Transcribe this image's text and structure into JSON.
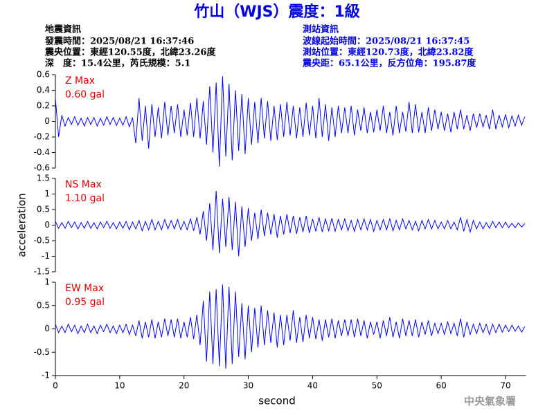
{
  "title": "竹山（WJS）震度：1級",
  "earthquake_info": [
    "地震資訊",
    "發震時間：2025/08/21 16:37:46",
    "震央位置：東經120.55度，北緯23.26度",
    "深　度：15.4公里，芮氏規模：5.1"
  ],
  "station_info": [
    "測站資訊",
    "波線起始時間：2025/08/21 16:37:45",
    "測站位置：東經120.73度，北緯23.82度",
    "震央距：65.1公里，反方位角：195.87度"
  ],
  "watermark": "中央氣象署",
  "chart_data": [
    {
      "type": "line",
      "color": "#0000ff",
      "annotations": [
        "Z Max",
        "0.60 gal"
      ],
      "xlim": [
        0,
        73.2
      ],
      "ylim": [
        -0.6,
        0.6
      ],
      "yticks": [
        0.6,
        0.4,
        0.2,
        0,
        -0.2,
        -0.4,
        -0.6
      ],
      "x": [
        0,
        0.5,
        1,
        1.5,
        2,
        2.5,
        3,
        3.5,
        4,
        4.5,
        5,
        5.5,
        6,
        6.5,
        7,
        7.5,
        8,
        8.5,
        9,
        9.5,
        10,
        10.5,
        11,
        11.5,
        12,
        12.5,
        13,
        13.5,
        14,
        14.5,
        15,
        15.5,
        16,
        16.5,
        17,
        17.5,
        18,
        18.5,
        19,
        19.5,
        20,
        20.5,
        21,
        21.5,
        22,
        22.5,
        23,
        23.5,
        24,
        24.5,
        25,
        25.5,
        26,
        26.5,
        27,
        27.5,
        28,
        28.5,
        29,
        29.5,
        30,
        30.5,
        31,
        31.5,
        32,
        32.5,
        33,
        33.5,
        34,
        34.5,
        35,
        35.5,
        36,
        36.5,
        37,
        37.5,
        38,
        38.5,
        39,
        39.5,
        40,
        40.5,
        41,
        41.5,
        42,
        42.5,
        43,
        43.5,
        44,
        44.5,
        45,
        45.5,
        46,
        46.5,
        47,
        47.5,
        48,
        48.5,
        49,
        49.5,
        50,
        50.5,
        51,
        51.5,
        52,
        52.5,
        53,
        53.5,
        54,
        54.5,
        55,
        55.5,
        56,
        56.5,
        57,
        57.5,
        58,
        58.5,
        59,
        59.5,
        60,
        60.5,
        61,
        61.5,
        62,
        62.5,
        63,
        63.5,
        64,
        64.5,
        65,
        65.5,
        66,
        66.5,
        67,
        67.5,
        68,
        68.5,
        69,
        69.5,
        70,
        70.5,
        71,
        71.5,
        72,
        72.5,
        73
      ],
      "values": [
        0.3,
        -0.2,
        0.08,
        -0.06,
        0.05,
        -0.04,
        0.06,
        -0.05,
        0.04,
        -0.06,
        0.05,
        -0.04,
        0.05,
        -0.06,
        0.04,
        -0.05,
        0.06,
        -0.04,
        0.05,
        -0.05,
        0.04,
        -0.05,
        0.06,
        -0.07,
        0.05,
        -0.28,
        0.3,
        -0.25,
        0.2,
        -0.35,
        0.22,
        -0.2,
        0.18,
        -0.22,
        0.25,
        -0.18,
        0.2,
        -0.15,
        0.22,
        -0.2,
        0.15,
        -0.18,
        0.24,
        -0.2,
        0.3,
        -0.22,
        0.26,
        -0.3,
        0.45,
        -0.4,
        0.5,
        -0.58,
        0.58,
        -0.45,
        0.48,
        -0.5,
        0.4,
        -0.38,
        0.35,
        -0.42,
        0.3,
        -0.3,
        0.25,
        -0.28,
        0.3,
        -0.22,
        0.26,
        -0.25,
        0.2,
        -0.24,
        0.22,
        -0.2,
        0.25,
        -0.18,
        0.2,
        -0.22,
        0.18,
        -0.2,
        0.24,
        -0.18,
        0.2,
        -0.22,
        0.3,
        -0.2,
        0.22,
        -0.25,
        0.18,
        -0.2,
        0.2,
        -0.15,
        0.18,
        -0.15,
        0.2,
        -0.18,
        0.15,
        -0.12,
        0.18,
        -0.15,
        0.12,
        -0.14,
        0.15,
        -0.12,
        0.2,
        -0.15,
        0.12,
        -0.18,
        0.2,
        -0.15,
        0.12,
        -0.13,
        0.25,
        -0.15,
        0.22,
        -0.14,
        0.12,
        -0.15,
        0.18,
        -0.12,
        0.15,
        -0.1,
        0.12,
        -0.12,
        0.1,
        -0.14,
        0.12,
        -0.1,
        0.15,
        -0.1,
        0.08,
        -0.12,
        0.1,
        -0.08,
        0.1,
        -0.07,
        0.08,
        -0.1,
        0.15,
        -0.1,
        0.08,
        -0.07,
        0.09,
        -0.08,
        0.07,
        -0.06,
        0.08,
        -0.05,
        0.06
      ]
    },
    {
      "type": "line",
      "color": "#0000ff",
      "annotations": [
        "NS Max",
        "1.10 gal"
      ],
      "ylabel": "acceleration",
      "xlim": [
        0,
        73.2
      ],
      "ylim": [
        -1.5,
        1.5
      ],
      "yticks": [
        1.5,
        1,
        0.5,
        0,
        -0.5,
        -1,
        -1.5
      ],
      "x": [
        0,
        0.5,
        1,
        1.5,
        2,
        2.5,
        3,
        3.5,
        4,
        4.5,
        5,
        5.5,
        6,
        6.5,
        7,
        7.5,
        8,
        8.5,
        9,
        9.5,
        10,
        10.5,
        11,
        11.5,
        12,
        12.5,
        13,
        13.5,
        14,
        14.5,
        15,
        15.5,
        16,
        16.5,
        17,
        17.5,
        18,
        18.5,
        19,
        19.5,
        20,
        20.5,
        21,
        21.5,
        22,
        22.5,
        23,
        23.5,
        24,
        24.5,
        25,
        25.5,
        26,
        26.5,
        27,
        27.5,
        28,
        28.5,
        29,
        29.5,
        30,
        30.5,
        31,
        31.5,
        32,
        32.5,
        33,
        33.5,
        34,
        34.5,
        35,
        35.5,
        36,
        36.5,
        37,
        37.5,
        38,
        38.5,
        39,
        39.5,
        40,
        40.5,
        41,
        41.5,
        42,
        42.5,
        43,
        43.5,
        44,
        44.5,
        45,
        45.5,
        46,
        46.5,
        47,
        47.5,
        48,
        48.5,
        49,
        49.5,
        50,
        50.5,
        51,
        51.5,
        52,
        52.5,
        53,
        53.5,
        54,
        54.5,
        55,
        55.5,
        56,
        56.5,
        57,
        57.5,
        58,
        58.5,
        59,
        59.5,
        60,
        60.5,
        61,
        61.5,
        62,
        62.5,
        63,
        63.5,
        64,
        64.5,
        65,
        65.5,
        66,
        66.5,
        67,
        67.5,
        68,
        68.5,
        69,
        69.5,
        70,
        70.5,
        71,
        71.5,
        72,
        72.5,
        73
      ],
      "values": [
        0.12,
        -0.1,
        0.08,
        -0.1,
        0.12,
        -0.08,
        0.1,
        -0.12,
        0.08,
        -0.1,
        0.12,
        -0.1,
        0.08,
        -0.12,
        0.1,
        -0.08,
        0.12,
        -0.1,
        0.08,
        -0.12,
        0.1,
        -0.1,
        0.12,
        -0.15,
        0.1,
        -0.12,
        0.15,
        -0.18,
        0.12,
        -0.15,
        0.18,
        -0.15,
        0.12,
        -0.15,
        0.18,
        -0.12,
        0.15,
        -0.12,
        0.18,
        -0.15,
        0.12,
        -0.15,
        0.2,
        -0.18,
        0.25,
        -0.3,
        0.45,
        -0.5,
        0.7,
        -0.8,
        1.1,
        -0.9,
        0.85,
        -0.7,
        0.9,
        -0.8,
        0.75,
        -1.0,
        0.6,
        -0.7,
        0.55,
        -0.5,
        0.4,
        -0.45,
        0.5,
        -0.35,
        0.4,
        -0.3,
        0.35,
        -0.4,
        0.3,
        -0.3,
        0.35,
        -0.25,
        0.3,
        -0.28,
        0.25,
        -0.22,
        0.3,
        -0.25,
        0.2,
        -0.2,
        0.25,
        -0.22,
        0.2,
        -0.18,
        0.22,
        -0.2,
        0.18,
        -0.15,
        0.2,
        -0.18,
        0.15,
        -0.2,
        0.18,
        -0.15,
        0.2,
        -0.15,
        0.18,
        -0.2,
        0.15,
        -0.15,
        0.18,
        -0.15,
        0.2,
        -0.18,
        0.15,
        -0.15,
        0.2,
        -0.12,
        0.15,
        -0.15,
        0.12,
        -0.18,
        0.15,
        -0.12,
        0.18,
        -0.12,
        0.15,
        -0.12,
        0.1,
        -0.12,
        0.15,
        -0.12,
        0.1,
        -0.15,
        0.25,
        -0.2,
        0.18,
        -0.22,
        0.15,
        -0.12,
        0.1,
        -0.12,
        0.08,
        -0.1,
        0.12,
        -0.08,
        0.1,
        -0.08,
        0.1,
        -0.08,
        0.06,
        -0.08,
        0.07,
        -0.06,
        0.05
      ]
    },
    {
      "type": "line",
      "color": "#0000ff",
      "annotations": [
        "EW Max",
        "0.95 gal"
      ],
      "xlabel": "second",
      "xlim": [
        0,
        73.2
      ],
      "xticks": [
        0,
        10,
        20,
        30,
        40,
        50,
        60,
        70
      ],
      "ylim": [
        -1,
        1
      ],
      "yticks": [
        1,
        0.5,
        0,
        -0.5,
        -1
      ],
      "x": [
        0,
        0.5,
        1,
        1.5,
        2,
        2.5,
        3,
        3.5,
        4,
        4.5,
        5,
        5.5,
        6,
        6.5,
        7,
        7.5,
        8,
        8.5,
        9,
        9.5,
        10,
        10.5,
        11,
        11.5,
        12,
        12.5,
        13,
        13.5,
        14,
        14.5,
        15,
        15.5,
        16,
        16.5,
        17,
        17.5,
        18,
        18.5,
        19,
        19.5,
        20,
        20.5,
        21,
        21.5,
        22,
        22.5,
        23,
        23.5,
        24,
        24.5,
        25,
        25.5,
        26,
        26.5,
        27,
        27.5,
        28,
        28.5,
        29,
        29.5,
        30,
        30.5,
        31,
        31.5,
        32,
        32.5,
        33,
        33.5,
        34,
        34.5,
        35,
        35.5,
        36,
        36.5,
        37,
        37.5,
        38,
        38.5,
        39,
        39.5,
        40,
        40.5,
        41,
        41.5,
        42,
        42.5,
        43,
        43.5,
        44,
        44.5,
        45,
        45.5,
        46,
        46.5,
        47,
        47.5,
        48,
        48.5,
        49,
        49.5,
        50,
        50.5,
        51,
        51.5,
        52,
        52.5,
        53,
        53.5,
        54,
        54.5,
        55,
        55.5,
        56,
        56.5,
        57,
        57.5,
        58,
        58.5,
        59,
        59.5,
        60,
        60.5,
        61,
        61.5,
        62,
        62.5,
        63,
        63.5,
        64,
        64.5,
        65,
        65.5,
        66,
        66.5,
        67,
        67.5,
        68,
        68.5,
        69,
        69.5,
        70,
        70.5,
        71,
        71.5,
        72,
        72.5,
        73
      ],
      "values": [
        0.1,
        -0.08,
        0.06,
        -0.08,
        0.1,
        -0.06,
        0.08,
        -0.1,
        0.06,
        -0.08,
        0.1,
        -0.08,
        0.06,
        -0.1,
        0.08,
        -0.06,
        0.1,
        -0.08,
        0.06,
        -0.1,
        0.08,
        -0.08,
        0.1,
        -0.12,
        0.08,
        -0.15,
        0.18,
        -0.2,
        0.15,
        -0.18,
        0.2,
        -0.2,
        0.15,
        -0.18,
        0.22,
        -0.15,
        0.2,
        -0.18,
        0.22,
        -0.2,
        0.15,
        -0.18,
        0.25,
        -0.22,
        0.3,
        -0.35,
        0.6,
        -0.7,
        0.8,
        -0.75,
        0.85,
        -0.8,
        0.95,
        -0.85,
        0.9,
        -0.75,
        0.8,
        -0.6,
        0.55,
        -0.65,
        0.5,
        -0.5,
        0.45,
        -0.4,
        0.5,
        -0.35,
        0.4,
        -0.3,
        0.35,
        -0.4,
        0.3,
        -0.35,
        0.3,
        -0.25,
        0.4,
        -0.3,
        0.25,
        -0.28,
        0.3,
        -0.2,
        0.25,
        -0.22,
        0.2,
        -0.25,
        0.2,
        -0.18,
        0.22,
        -0.2,
        0.18,
        -0.15,
        0.2,
        -0.15,
        0.2,
        -0.18,
        0.22,
        -0.15,
        0.18,
        -0.2,
        0.15,
        -0.12,
        0.15,
        -0.2,
        0.18,
        -0.15,
        0.25,
        -0.18,
        0.15,
        -0.2,
        0.22,
        -0.15,
        0.18,
        -0.15,
        0.2,
        -0.18,
        0.15,
        -0.12,
        0.18,
        -0.15,
        0.12,
        -0.1,
        0.12,
        -0.12,
        0.15,
        -0.1,
        0.12,
        -0.15,
        0.22,
        -0.18,
        0.15,
        -0.12,
        0.1,
        -0.1,
        0.12,
        -0.08,
        0.1,
        -0.12,
        0.1,
        -0.08,
        0.1,
        -0.07,
        0.08,
        -0.06,
        0.08,
        -0.05,
        0.06,
        -0.07,
        0.05
      ]
    }
  ]
}
